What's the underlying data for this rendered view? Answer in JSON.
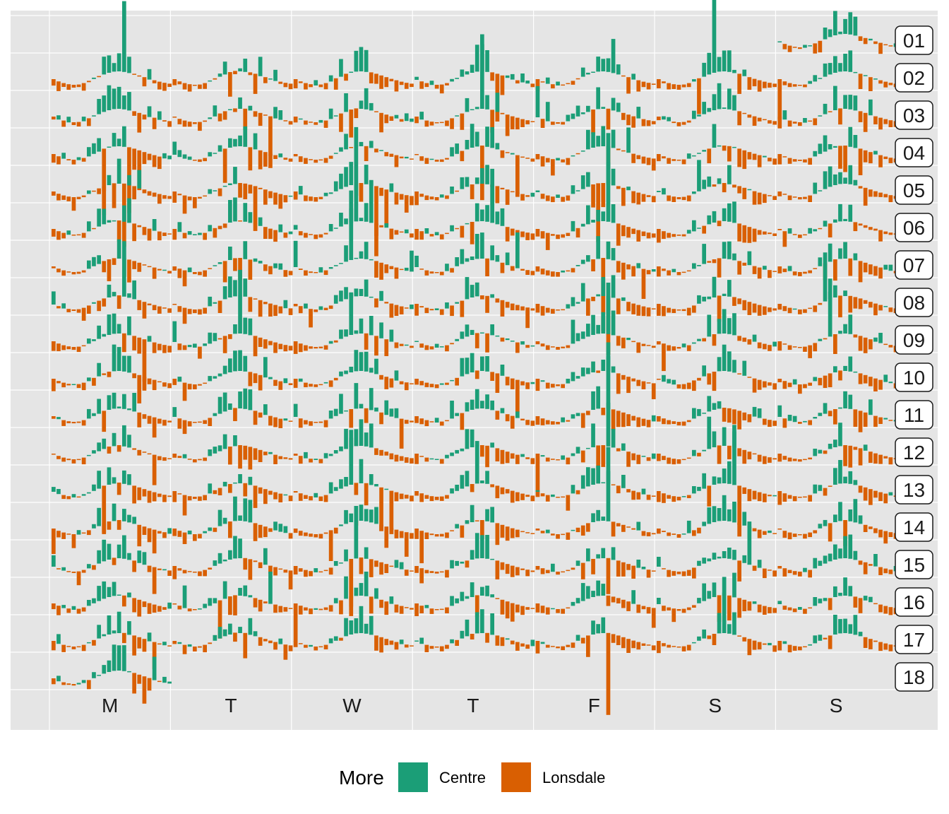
{
  "chart_data": {
    "type": "bar",
    "description_axis": "calendar heatmap of hourly bar profiles",
    "day_labels": [
      "M",
      "T",
      "W",
      "T",
      "F",
      "S",
      "S"
    ],
    "week_labels": [
      "01",
      "02",
      "03",
      "04",
      "05",
      "06",
      "07",
      "08",
      "09",
      "10",
      "11",
      "12",
      "13",
      "14",
      "15",
      "16",
      "17",
      "18"
    ],
    "first_week_start_day": 6,
    "last_week_end_day": 0,
    "hours_per_day": 24,
    "baseline_curve": {
      "description": "typical hourly profile (relative units, 0 = night minimum)",
      "values": [
        2.0,
        1.2,
        0.6,
        0.2,
        0.0,
        0.1,
        0.6,
        1.4,
        2.3,
        3.1,
        3.9,
        4.5,
        4.9,
        5.0,
        4.8,
        4.4,
        3.9,
        3.3,
        2.7,
        2.1,
        1.6,
        1.1,
        0.7,
        0.4
      ]
    },
    "legend": {
      "title": "More",
      "entries": [
        {
          "label": "Centre",
          "color": "#1b9e77"
        },
        {
          "label": "Lonsdale",
          "color": "#d95f02"
        }
      ]
    },
    "colors": {
      "panel": "#e5e5e5",
      "grid": "#ffffff",
      "centre": "#1b9e77",
      "lonsdale": "#d95f02",
      "curve": "#444444"
    }
  }
}
